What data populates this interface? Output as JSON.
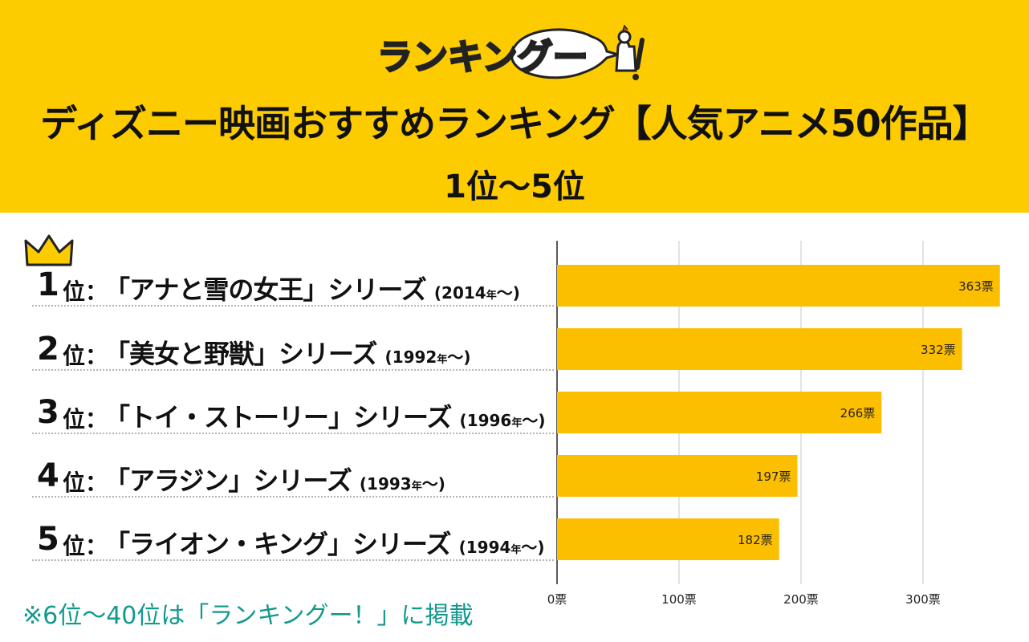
{
  "header": {
    "logo_text": "ランキングー!",
    "title": "ディズニー映画おすすめランキング【人気アニメ50作品】",
    "subtitle": "1位〜5位"
  },
  "colors": {
    "header_bg": "#fccb00",
    "bar": "#fcbf00",
    "footnote": "#139a8f"
  },
  "ranking": [
    {
      "rank": "1",
      "suffix": "位：",
      "title": "「アナと雪の女王」シリーズ",
      "year": "2014",
      "nen": "年"
    },
    {
      "rank": "2",
      "suffix": "位：",
      "title": "「美女と野獣」シリーズ",
      "year": "1992",
      "nen": "年"
    },
    {
      "rank": "3",
      "suffix": "位：",
      "title": "「トイ・ストーリー」シリーズ",
      "year": "1996",
      "nen": "年"
    },
    {
      "rank": "4",
      "suffix": "位：",
      "title": "「アラジン」シリーズ",
      "year": "1993",
      "nen": "年"
    },
    {
      "rank": "5",
      "suffix": "位：",
      "title": "「ライオン・キング」シリーズ",
      "year": "1994",
      "nen": "年"
    }
  ],
  "chart_data": {
    "type": "bar",
    "orientation": "horizontal",
    "categories": [
      "「アナと雪の女王」シリーズ",
      "「美女と野獣」シリーズ",
      "「トイ・ストーリー」シリーズ",
      "「アラジン」シリーズ",
      "「ライオン・キング」シリーズ"
    ],
    "values": [
      363,
      332,
      266,
      197,
      182
    ],
    "value_labels": [
      "363票",
      "332票",
      "266票",
      "197票",
      "182票"
    ],
    "xlim": [
      0,
      360
    ],
    "xticks": [
      0,
      100,
      200,
      300
    ],
    "xtick_labels": [
      "0票",
      "100票",
      "200票",
      "300票"
    ],
    "grid": true
  },
  "footnote": "※6位〜40位は「ランキングー！」に掲載"
}
